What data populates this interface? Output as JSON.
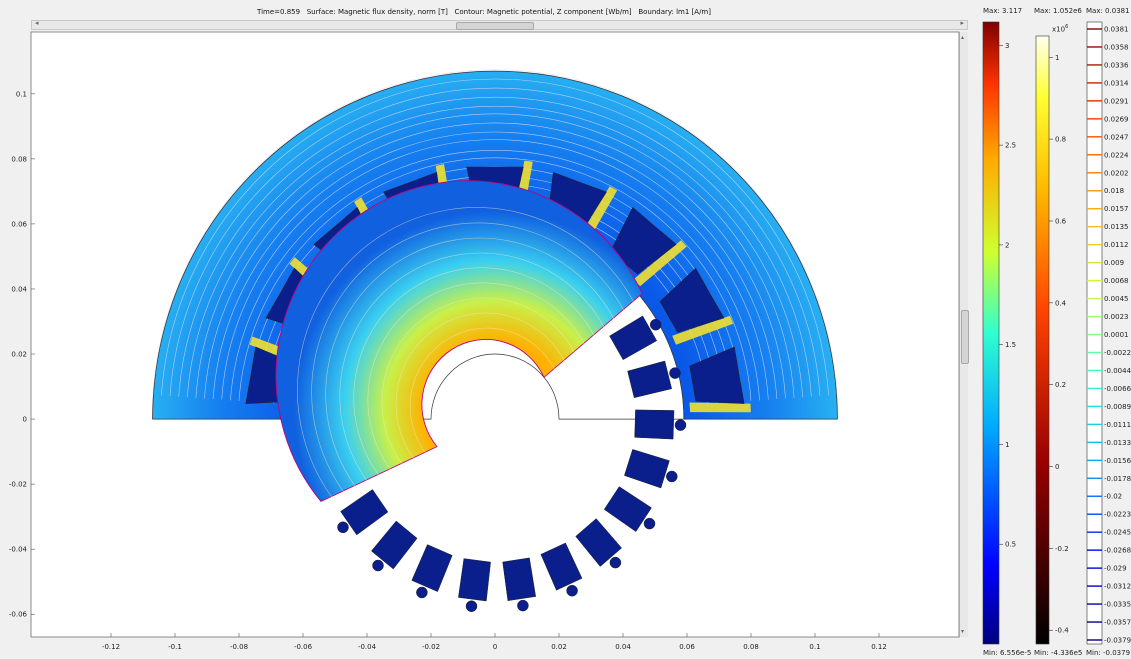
{
  "plot_title": "Time=0.859   Surface: Magnetic flux density, norm [T]   Contour: Magnetic potential, Z component [Wb/m]   Boundary: lm1 [A/m]",
  "scroll": {
    "left_arrow": "◂",
    "right_arrow": "▸",
    "up_arrow": "▴",
    "down_arrow": "▾",
    "grip": "|||"
  },
  "chart_data": [
    {
      "type": "heatmap",
      "title": "Time=0.859   Surface: Magnetic flux density, norm [T]   Contour: Magnetic potential, Z component [Wb/m]   Boundary: lm1 [A/m]",
      "xlim": [
        -0.145,
        0.145
      ],
      "ylim": [
        -0.067,
        0.119
      ],
      "x_ticks": [
        "-0.12",
        "-0.1",
        "-0.08",
        "-0.06",
        "-0.04",
        "-0.02",
        "0",
        "0.02",
        "0.04",
        "0.06",
        "0.08",
        "0.1",
        "0.12"
      ],
      "x_tick_values": [
        -0.12,
        -0.1,
        -0.08,
        -0.06,
        -0.04,
        -0.02,
        0,
        0.02,
        0.04,
        0.06,
        0.08,
        0.1,
        0.12
      ],
      "y_ticks": [
        "0.1",
        "0.08",
        "0.06",
        "0.04",
        "0.02",
        "0",
        "-0.02",
        "-0.04",
        "-0.06"
      ],
      "y_tick_values": [
        0.1,
        0.08,
        0.06,
        0.04,
        0.02,
        0,
        -0.02,
        -0.04,
        -0.06
      ],
      "geometry": {
        "stator_outer_radius": 0.107,
        "stator_inner_radius": 0.059,
        "rotor_outer_radius": 0.06,
        "shaft_radius": 0.02,
        "stator_slots": 9,
        "rotor_slots": 12,
        "rotor_sector_deg": [
          -155,
          40
        ]
      },
      "grid": false
    },
    {
      "type": "colorbar",
      "name": "Magnetic flux density, norm [T]",
      "colormap": "rainbow",
      "max_label": "Max: 3.117",
      "min_label": "Min: 6.556e-5",
      "range": [
        6.556e-05,
        3.117
      ],
      "ticks": [
        "3",
        "2.5",
        "2",
        "1.5",
        "1",
        "0.5"
      ],
      "tick_values": [
        3,
        2.5,
        2,
        1.5,
        1,
        0.5
      ]
    },
    {
      "type": "colorbar",
      "name": "Boundary: lm1 [A/m]",
      "colormap": "thermal",
      "max_label": "Max: 1.052e6",
      "min_label": "Min: -4.336e5",
      "exponent": "x10",
      "exponent_power": "6",
      "range": [
        -0.4336,
        1.052
      ],
      "ticks": [
        "1",
        "0.8",
        "0.6",
        "0.4",
        "0.2",
        "0",
        "-0.2",
        "-0.4"
      ],
      "tick_values": [
        1,
        0.8,
        0.6,
        0.4,
        0.2,
        0,
        -0.2,
        -0.4
      ]
    },
    {
      "type": "contour-legend",
      "name": "Magnetic potential, Z component [Wb/m]",
      "max_label": "Max: 0.0381",
      "min_label": "Min: -0.0379",
      "levels": [
        "0.0381",
        "0.0358",
        "0.0336",
        "0.0314",
        "0.0291",
        "0.0269",
        "0.0247",
        "0.0224",
        "0.0202",
        "0.018",
        "0.0157",
        "0.0135",
        "0.0112",
        "0.009",
        "0.0068",
        "0.0045",
        "0.0023",
        "0.0001",
        "-0.0022",
        "-0.0044",
        "-0.0066",
        "-0.0089",
        "-0.0111",
        "-0.0133",
        "-0.0156",
        "-0.0178",
        "-0.02",
        "-0.0223",
        "-0.0245",
        "-0.0268",
        "-0.029",
        "-0.0312",
        "-0.0335",
        "-0.0357",
        "-0.0379"
      ]
    }
  ]
}
